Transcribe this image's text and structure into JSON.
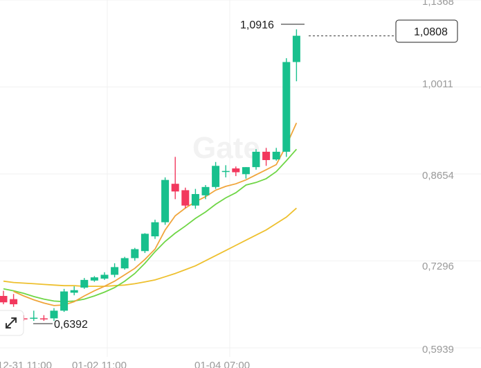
{
  "chart_data": {
    "type": "candlestick",
    "y_axis_labels": [
      "1,1368",
      "1,0011",
      "0,8654",
      "0,7296",
      "0,5939"
    ],
    "x_axis_labels": [
      "12-31 11:00",
      "01-02 11:00",
      "01-04 07:00"
    ],
    "last_price_label": "1,0808",
    "last_price": 1.0808,
    "high_label": "1,0916",
    "low_label": "0,6392",
    "watermark": "Gate",
    "grid": true,
    "colors": {
      "up": "#18c08d",
      "down": "#f2385d",
      "ma_fast": "#f0a53a",
      "ma_mid": "#6fd646",
      "ma_slow": "#eec02e"
    },
    "candles": [
      {
        "o": 0.675,
        "h": 0.683,
        "l": 0.662,
        "c": 0.665
      },
      {
        "o": 0.67,
        "h": 0.678,
        "l": 0.658,
        "c": 0.662
      },
      {
        "o": 0.64,
        "h": 0.645,
        "l": 0.636,
        "c": 0.639
      },
      {
        "o": 0.64,
        "h": 0.652,
        "l": 0.636,
        "c": 0.641
      },
      {
        "o": 0.64,
        "h": 0.645,
        "l": 0.636,
        "c": 0.639
      },
      {
        "o": 0.64,
        "h": 0.656,
        "l": 0.636,
        "c": 0.652
      },
      {
        "o": 0.652,
        "h": 0.686,
        "l": 0.65,
        "c": 0.682
      },
      {
        "o": 0.68,
        "h": 0.69,
        "l": 0.676,
        "c": 0.684
      },
      {
        "o": 0.688,
        "h": 0.703,
        "l": 0.686,
        "c": 0.7
      },
      {
        "o": 0.699,
        "h": 0.706,
        "l": 0.697,
        "c": 0.704
      },
      {
        "o": 0.702,
        "h": 0.712,
        "l": 0.7,
        "c": 0.708
      },
      {
        "o": 0.708,
        "h": 0.726,
        "l": 0.704,
        "c": 0.72
      },
      {
        "o": 0.718,
        "h": 0.736,
        "l": 0.716,
        "c": 0.734
      },
      {
        "o": 0.734,
        "h": 0.75,
        "l": 0.73,
        "c": 0.748
      },
      {
        "o": 0.745,
        "h": 0.773,
        "l": 0.742,
        "c": 0.772
      },
      {
        "o": 0.768,
        "h": 0.794,
        "l": 0.764,
        "c": 0.79
      },
      {
        "o": 0.79,
        "h": 0.86,
        "l": 0.786,
        "c": 0.856
      },
      {
        "o": 0.85,
        "h": 0.892,
        "l": 0.826,
        "c": 0.838
      },
      {
        "o": 0.84,
        "h": 0.844,
        "l": 0.812,
        "c": 0.816
      },
      {
        "o": 0.816,
        "h": 0.842,
        "l": 0.811,
        "c": 0.834
      },
      {
        "o": 0.832,
        "h": 0.848,
        "l": 0.826,
        "c": 0.845
      },
      {
        "o": 0.845,
        "h": 0.884,
        "l": 0.842,
        "c": 0.878
      },
      {
        "o": 0.87,
        "h": 0.879,
        "l": 0.86,
        "c": 0.87
      },
      {
        "o": 0.874,
        "h": 0.877,
        "l": 0.862,
        "c": 0.868
      },
      {
        "o": 0.865,
        "h": 0.876,
        "l": 0.858,
        "c": 0.876
      },
      {
        "o": 0.876,
        "h": 0.904,
        "l": 0.872,
        "c": 0.9
      },
      {
        "o": 0.9,
        "h": 0.906,
        "l": 0.878,
        "c": 0.887
      },
      {
        "o": 0.888,
        "h": 0.906,
        "l": 0.886,
        "c": 0.9
      },
      {
        "o": 0.9,
        "h": 1.046,
        "l": 0.892,
        "c": 1.04
      },
      {
        "o": 1.04,
        "h": 1.091,
        "l": 1.01,
        "c": 1.081
      }
    ],
    "ma_fast": [
      null,
      0.682,
      0.675,
      0.669,
      0.664,
      0.66,
      0.661,
      0.666,
      0.675,
      0.683,
      0.69,
      0.698,
      0.708,
      0.718,
      0.732,
      0.748,
      0.778,
      0.8,
      0.812,
      0.822,
      0.83,
      0.84,
      0.846,
      0.85,
      0.856,
      0.864,
      0.872,
      0.88,
      0.91,
      0.945
    ],
    "ma_mid": [
      0.686,
      0.683,
      0.679,
      0.674,
      0.67,
      0.667,
      0.666,
      0.667,
      0.67,
      0.675,
      0.681,
      0.688,
      0.698,
      0.71,
      0.726,
      0.744,
      0.76,
      0.773,
      0.784,
      0.796,
      0.806,
      0.818,
      0.828,
      0.836,
      0.848,
      0.852,
      0.858,
      0.869,
      0.886,
      0.904
    ],
    "ma_slow": [
      0.698,
      0.696,
      0.695,
      0.694,
      0.693,
      0.692,
      0.691,
      0.691,
      0.69,
      0.69,
      0.69,
      0.691,
      0.692,
      0.694,
      0.697,
      0.7,
      0.705,
      0.71,
      0.716,
      0.722,
      0.73,
      0.738,
      0.746,
      0.754,
      0.762,
      0.77,
      0.778,
      0.788,
      0.798,
      0.812
    ]
  }
}
